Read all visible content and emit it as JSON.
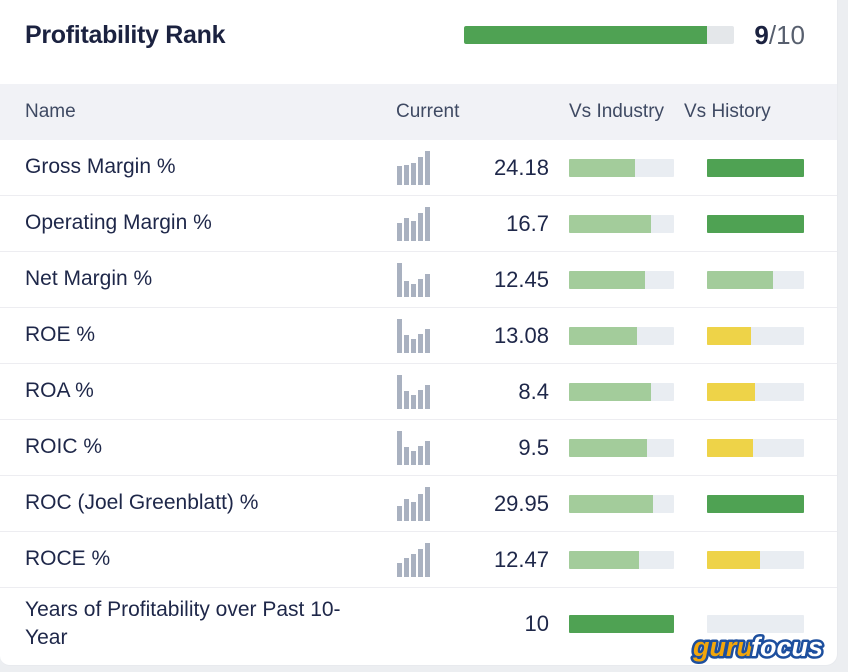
{
  "header": {
    "title": "Profitability Rank",
    "rank_value": "9",
    "rank_total": "/10",
    "rank_percent": 90
  },
  "colors": {
    "dark_green": "#4fa253",
    "light_green": "#a3cc9b",
    "yellow": "#eed348",
    "track_gray": "#e9edf2",
    "icon_gray": "#a9b1c0",
    "title_navy": "#1b2240"
  },
  "table": {
    "columns": {
      "name": "Name",
      "current": "Current",
      "vs_industry": "Vs Industry",
      "vs_history": "Vs History"
    },
    "rows": [
      {
        "name": "Gross Margin %",
        "current": "24.18",
        "icon": "histogram",
        "icon_bars": [
          55,
          57,
          63,
          82,
          100
        ],
        "vs_industry": {
          "percent": 63,
          "color": "light_green"
        },
        "vs_history": {
          "percent": 100,
          "color": "dark_green"
        }
      },
      {
        "name": "Operating Margin %",
        "current": "16.7",
        "icon": "histogram",
        "icon_bars": [
          52,
          66,
          58,
          82,
          100
        ],
        "vs_industry": {
          "percent": 78,
          "color": "light_green"
        },
        "vs_history": {
          "percent": 100,
          "color": "dark_green"
        }
      },
      {
        "name": "Net Margin %",
        "current": "12.45",
        "icon": "histogram",
        "icon_bars": [
          100,
          46,
          36,
          52,
          66
        ],
        "vs_industry": {
          "percent": 72,
          "color": "light_green"
        },
        "vs_history": {
          "percent": 68,
          "color": "light_green"
        }
      },
      {
        "name": "ROE %",
        "current": "13.08",
        "icon": "histogram",
        "icon_bars": [
          100,
          52,
          40,
          54,
          70
        ],
        "vs_industry": {
          "percent": 65,
          "color": "light_green"
        },
        "vs_history": {
          "percent": 45,
          "color": "yellow"
        }
      },
      {
        "name": "ROA %",
        "current": "8.4",
        "icon": "histogram",
        "icon_bars": [
          100,
          52,
          40,
          54,
          70
        ],
        "vs_industry": {
          "percent": 78,
          "color": "light_green"
        },
        "vs_history": {
          "percent": 49,
          "color": "yellow"
        }
      },
      {
        "name": "ROIC %",
        "current": "9.5",
        "icon": "histogram",
        "icon_bars": [
          100,
          52,
          40,
          54,
          70
        ],
        "vs_industry": {
          "percent": 74,
          "color": "light_green"
        },
        "vs_history": {
          "percent": 47,
          "color": "yellow"
        }
      },
      {
        "name": "ROC (Joel Greenblatt) %",
        "current": "29.95",
        "icon": "histogram",
        "icon_bars": [
          42,
          62,
          55,
          78,
          100
        ],
        "vs_industry": {
          "percent": 80,
          "color": "light_green"
        },
        "vs_history": {
          "percent": 100,
          "color": "dark_green"
        }
      },
      {
        "name": "ROCE %",
        "current": "12.47",
        "icon": "histogram",
        "icon_bars": [
          40,
          55,
          66,
          82,
          100
        ],
        "vs_industry": {
          "percent": 67,
          "color": "light_green"
        },
        "vs_history": {
          "percent": 55,
          "color": "yellow"
        }
      },
      {
        "name": "Years of Profitability over Past 10-Year",
        "current": "10",
        "icon": null,
        "icon_bars": null,
        "vs_industry": {
          "percent": 100,
          "color": "dark_green"
        },
        "vs_history": {
          "percent": 0,
          "color": "none"
        }
      }
    ]
  },
  "chart_data": {
    "type": "table",
    "title": "Profitability Rank",
    "rank": "9/10",
    "columns": [
      "Name",
      "Current",
      "Vs Industry",
      "Vs History"
    ],
    "values": [
      [
        "Gross Margin %",
        24.18,
        "63% green",
        "100% dark-green"
      ],
      [
        "Operating Margin %",
        16.7,
        "78% green",
        "100% dark-green"
      ],
      [
        "Net Margin %",
        12.45,
        "72% green",
        "68% green"
      ],
      [
        "ROE %",
        13.08,
        "65% green",
        "45% yellow"
      ],
      [
        "ROA %",
        8.4,
        "78% green",
        "49% yellow"
      ],
      [
        "ROIC %",
        9.5,
        "74% green",
        "47% yellow"
      ],
      [
        "ROC (Joel Greenblatt) %",
        29.95,
        "80% green",
        "100% dark-green"
      ],
      [
        "ROCE %",
        12.47,
        "67% green",
        "55% yellow"
      ],
      [
        "Years of Profitability over Past 10-Year",
        10,
        "100% dark-green",
        "0%"
      ]
    ]
  },
  "logo": {
    "part1": "guru",
    "part2": "focus"
  }
}
